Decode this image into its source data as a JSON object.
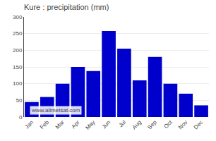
{
  "chart_data": {
    "type": "bar",
    "title": "Kure : precipitation (mm)",
    "categories": [
      "Jan",
      "Feb",
      "Mar",
      "Apr",
      "May",
      "Jun",
      "Jul",
      "Aug",
      "Sep",
      "Oct",
      "Nov",
      "Dec"
    ],
    "values": [
      45,
      60,
      100,
      150,
      138,
      258,
      205,
      110,
      180,
      100,
      70,
      35
    ],
    "color": "#0000cc",
    "ylim": [
      0,
      300
    ],
    "yticks": [
      0,
      50,
      100,
      150,
      200,
      250,
      300
    ],
    "grid": true,
    "annotations": [
      "www.allmetsat.com"
    ]
  }
}
